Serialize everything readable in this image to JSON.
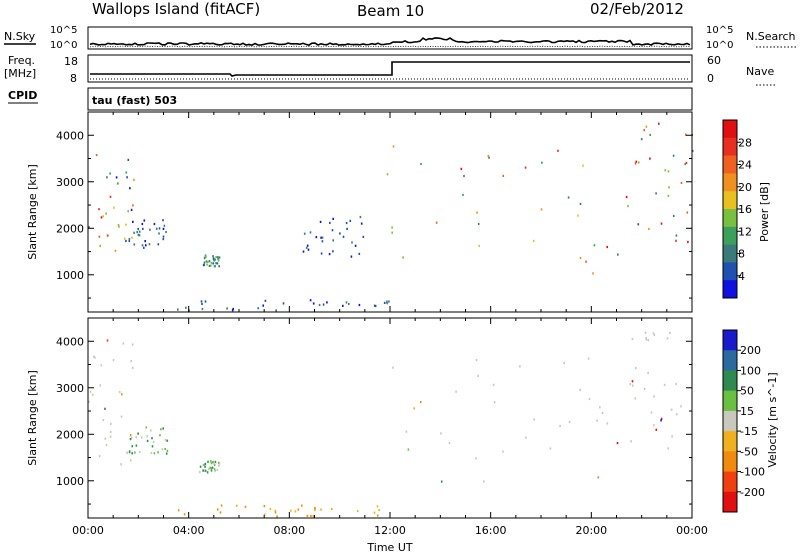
{
  "header": {
    "station": "Wallops Island (fitACF)",
    "beam": "Beam 10",
    "date": "02/Feb/2012"
  },
  "top_panels": {
    "nsky_label": "N.Sky",
    "nsky_ticks": [
      "10^5",
      "10^0"
    ],
    "nsearch_label": "N.Search",
    "nsearch_ticks": [
      "10^5",
      "10^0"
    ],
    "freq_label": "Freq.",
    "freq_unit": "[MHz]",
    "freq_ticks": [
      "18",
      "8"
    ],
    "nave_label": "Nave",
    "nave_ticks": [
      "60",
      "0"
    ],
    "cpid_label": "CPID",
    "cpid_value": "tau (fast) 503"
  },
  "chart_data": [
    {
      "type": "heatmap",
      "name": "power",
      "xlabel": "",
      "ylabel": "Slant Range [km]",
      "x_range_hours": [
        0,
        24
      ],
      "ylim": [
        200,
        4500
      ],
      "yticks": [
        1000,
        2000,
        3000,
        4000
      ],
      "yticklabels": [
        "1000",
        "2000",
        "3000",
        "4000"
      ],
      "colorbar": {
        "label": "Power [dB]",
        "ticks": [
          "4",
          "8",
          "12",
          "16",
          "20",
          "24",
          "28"
        ],
        "colors": [
          "#1010e0",
          "#2050b0",
          "#3a7a7a",
          "#3aa05a",
          "#7ac040",
          "#e8c020",
          "#f09020",
          "#f06020",
          "#e83020",
          "#e01010"
        ]
      },
      "regions": [
        {
          "t0": 0.0,
          "t1": 1.8,
          "r0": 1300,
          "r1": 3900,
          "level": "mixed-high"
        },
        {
          "t0": 1.6,
          "t1": 3.3,
          "r0": 1600,
          "r1": 2200,
          "level": "low"
        },
        {
          "t0": 4.4,
          "t1": 5.2,
          "r0": 1200,
          "r1": 1450,
          "level": "medium"
        },
        {
          "t0": 3.5,
          "t1": 12.0,
          "r0": 250,
          "r1": 500,
          "level": "low"
        },
        {
          "t0": 8.5,
          "t1": 11.0,
          "r0": 1400,
          "r1": 2300,
          "level": "low"
        },
        {
          "t0": 11.8,
          "t1": 21.6,
          "r0": 1000,
          "r1": 3900,
          "level": "high"
        },
        {
          "t0": 21.4,
          "t1": 24.0,
          "r0": 1700,
          "r1": 4300,
          "level": "mixed-high"
        }
      ]
    },
    {
      "type": "heatmap",
      "name": "velocity",
      "xlabel": "Time UT",
      "ylabel": "Slant Range [km]",
      "x_range_hours": [
        0,
        24
      ],
      "xticks_hours": [
        0,
        4,
        8,
        12,
        16,
        20,
        24
      ],
      "xticklabels": [
        "00:00",
        "04:00",
        "08:00",
        "12:00",
        "16:00",
        "20:00",
        "00:00"
      ],
      "ylim": [
        200,
        4500
      ],
      "yticks": [
        1000,
        2000,
        3000,
        4000
      ],
      "yticklabels": [
        "1000",
        "2000",
        "3000",
        "4000"
      ],
      "colorbar": {
        "label": "Velocity [m s^-1]",
        "ticks": [
          "200",
          "100",
          "50",
          "15",
          "-15",
          "-50",
          "-100",
          "-200"
        ],
        "colors": [
          "#1a1acc",
          "#2a6aa0",
          "#2e8a50",
          "#6ac040",
          "#c8c8bc",
          "#f0b020",
          "#f08a10",
          "#f04010",
          "#e01010"
        ]
      },
      "regions": [
        {
          "t0": 0.0,
          "t1": 1.8,
          "r0": 1300,
          "r1": 4300,
          "level": "ground"
        },
        {
          "t0": 1.6,
          "t1": 3.3,
          "r0": 1600,
          "r1": 2200,
          "level": "positive"
        },
        {
          "t0": 4.4,
          "t1": 5.2,
          "r0": 1200,
          "r1": 1450,
          "level": "positive"
        },
        {
          "t0": 3.5,
          "t1": 12.0,
          "r0": 250,
          "r1": 500,
          "level": "negative"
        },
        {
          "t0": 11.8,
          "t1": 21.6,
          "r0": 1000,
          "r1": 3900,
          "level": "ground"
        },
        {
          "t0": 21.4,
          "t1": 24.0,
          "r0": 1700,
          "r1": 4300,
          "level": "ground"
        }
      ]
    }
  ]
}
